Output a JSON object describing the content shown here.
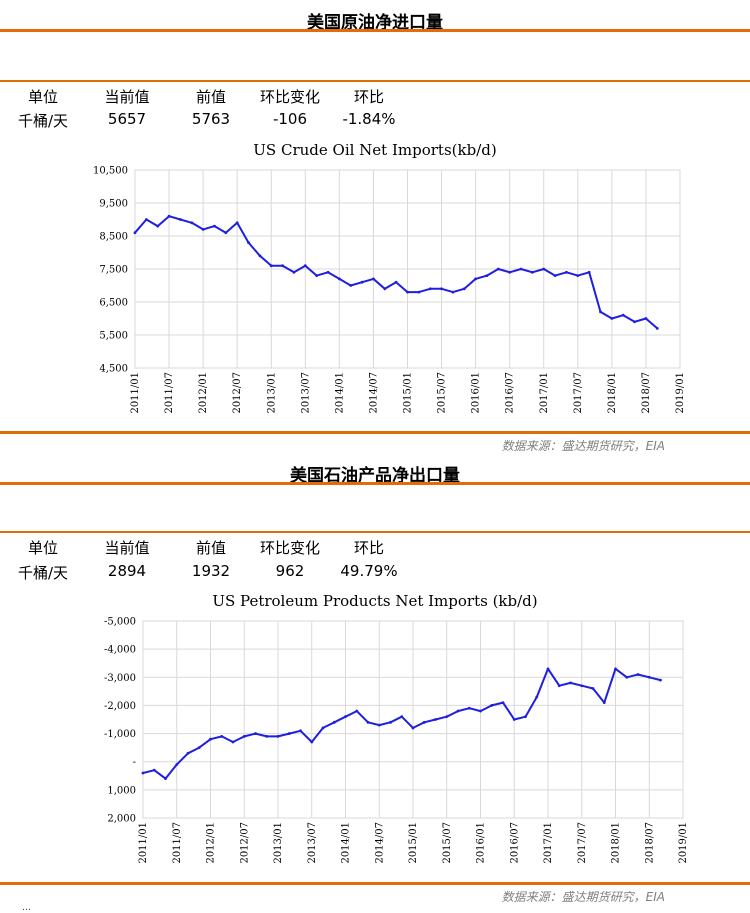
{
  "sections": [
    {
      "title": "美国原油净进口量",
      "headers": [
        "单位",
        "当前值",
        "前值",
        "环比变化",
        "环比"
      ],
      "values": [
        "千桶/天",
        "5657",
        "5763",
        "-106",
        "-1.84%"
      ],
      "source": "数据来源：盛达期货研究，EIA"
    },
    {
      "title": "美国石油产品净出口量",
      "headers": [
        "单位",
        "当前值",
        "前值",
        "环比变化",
        "环比"
      ],
      "values": [
        "千桶/天",
        "2894",
        "1932",
        "962",
        "49.79%"
      ],
      "source": "数据来源：盛达期货研究，EIA"
    }
  ],
  "corner_text": "…",
  "chart_data": [
    {
      "type": "line",
      "title": "US Crude Oil Net Imports(kb/d)",
      "series_color": "#1f1fe0",
      "ylim": [
        4500,
        10500
      ],
      "yticks": [
        4500,
        5500,
        6500,
        7500,
        8500,
        9500,
        10500
      ],
      "ytick_labels": [
        "4,500",
        "5,500",
        "6,500",
        "7,500",
        "8,500",
        "9,500",
        "10,500"
      ],
      "xticks": [
        "2011/01",
        "2011/07",
        "2012/01",
        "2012/07",
        "2013/01",
        "2013/07",
        "2014/01",
        "2014/07",
        "2015/01",
        "2015/07",
        "2016/01",
        "2016/07",
        "2017/01",
        "2017/07",
        "2018/01",
        "2018/07",
        "2019/01"
      ],
      "grid": true,
      "x": [
        "2011/01",
        "2011/03",
        "2011/05",
        "2011/07",
        "2011/09",
        "2011/11",
        "2012/01",
        "2012/03",
        "2012/05",
        "2012/07",
        "2012/09",
        "2012/11",
        "2013/01",
        "2013/03",
        "2013/05",
        "2013/07",
        "2013/09",
        "2013/11",
        "2014/01",
        "2014/03",
        "2014/05",
        "2014/07",
        "2014/09",
        "2014/11",
        "2015/01",
        "2015/03",
        "2015/05",
        "2015/07",
        "2015/09",
        "2015/11",
        "2016/01",
        "2016/03",
        "2016/05",
        "2016/07",
        "2016/09",
        "2016/11",
        "2017/01",
        "2017/03",
        "2017/05",
        "2017/07",
        "2017/09",
        "2017/11",
        "2018/01",
        "2018/03",
        "2018/05",
        "2018/07",
        "2018/09"
      ],
      "values": [
        8600,
        9000,
        8800,
        9100,
        9000,
        8900,
        8700,
        8800,
        8600,
        8900,
        8300,
        7900,
        7600,
        7600,
        7400,
        7600,
        7300,
        7400,
        7200,
        7000,
        7100,
        7200,
        6900,
        7100,
        6800,
        6800,
        6900,
        6900,
        6800,
        6900,
        7200,
        7300,
        7500,
        7400,
        7500,
        7400,
        7500,
        7300,
        7400,
        7300,
        7400,
        6200,
        6000,
        6100,
        5900,
        6000,
        5700
      ]
    },
    {
      "type": "line",
      "title": "US Petroleum Products Net Imports (kb/d)",
      "series_color": "#1f1fe0",
      "ylim": [
        -5000,
        2000
      ],
      "y_inverted": true,
      "yticks": [
        -5000,
        -4000,
        -3000,
        -2000,
        -1000,
        0,
        1000,
        2000
      ],
      "ytick_labels": [
        "-5,000",
        "-4,000",
        "-3,000",
        "-2,000",
        "-1,000",
        "-",
        "1,000",
        "2,000"
      ],
      "xticks": [
        "2011/01",
        "2011/07",
        "2012/01",
        "2012/07",
        "2013/01",
        "2013/07",
        "2014/01",
        "2014/07",
        "2015/01",
        "2015/07",
        "2016/01",
        "2016/07",
        "2017/01",
        "2017/07",
        "2018/01",
        "2018/07",
        "2019/01"
      ],
      "grid": true,
      "x": [
        "2011/01",
        "2011/03",
        "2011/05",
        "2011/07",
        "2011/09",
        "2011/11",
        "2012/01",
        "2012/03",
        "2012/05",
        "2012/07",
        "2012/09",
        "2012/11",
        "2013/01",
        "2013/03",
        "2013/05",
        "2013/07",
        "2013/09",
        "2013/11",
        "2014/01",
        "2014/03",
        "2014/05",
        "2014/07",
        "2014/09",
        "2014/11",
        "2015/01",
        "2015/03",
        "2015/05",
        "2015/07",
        "2015/09",
        "2015/11",
        "2016/01",
        "2016/03",
        "2016/05",
        "2016/07",
        "2016/09",
        "2016/11",
        "2017/01",
        "2017/03",
        "2017/05",
        "2017/07",
        "2017/09",
        "2017/11",
        "2018/01",
        "2018/03",
        "2018/05",
        "2018/07",
        "2018/09"
      ],
      "values": [
        400,
        300,
        600,
        100,
        -300,
        -500,
        -800,
        -900,
        -700,
        -900,
        -1000,
        -900,
        -900,
        -1000,
        -1100,
        -700,
        -1200,
        -1400,
        -1600,
        -1800,
        -1400,
        -1300,
        -1400,
        -1600,
        -1200,
        -1400,
        -1500,
        -1600,
        -1800,
        -1900,
        -1800,
        -2000,
        -2100,
        -1500,
        -1600,
        -2300,
        -3300,
        -2700,
        -2800,
        -2700,
        -2600,
        -2100,
        -3300,
        -3000,
        -3100,
        -3000,
        -2900
      ]
    }
  ]
}
